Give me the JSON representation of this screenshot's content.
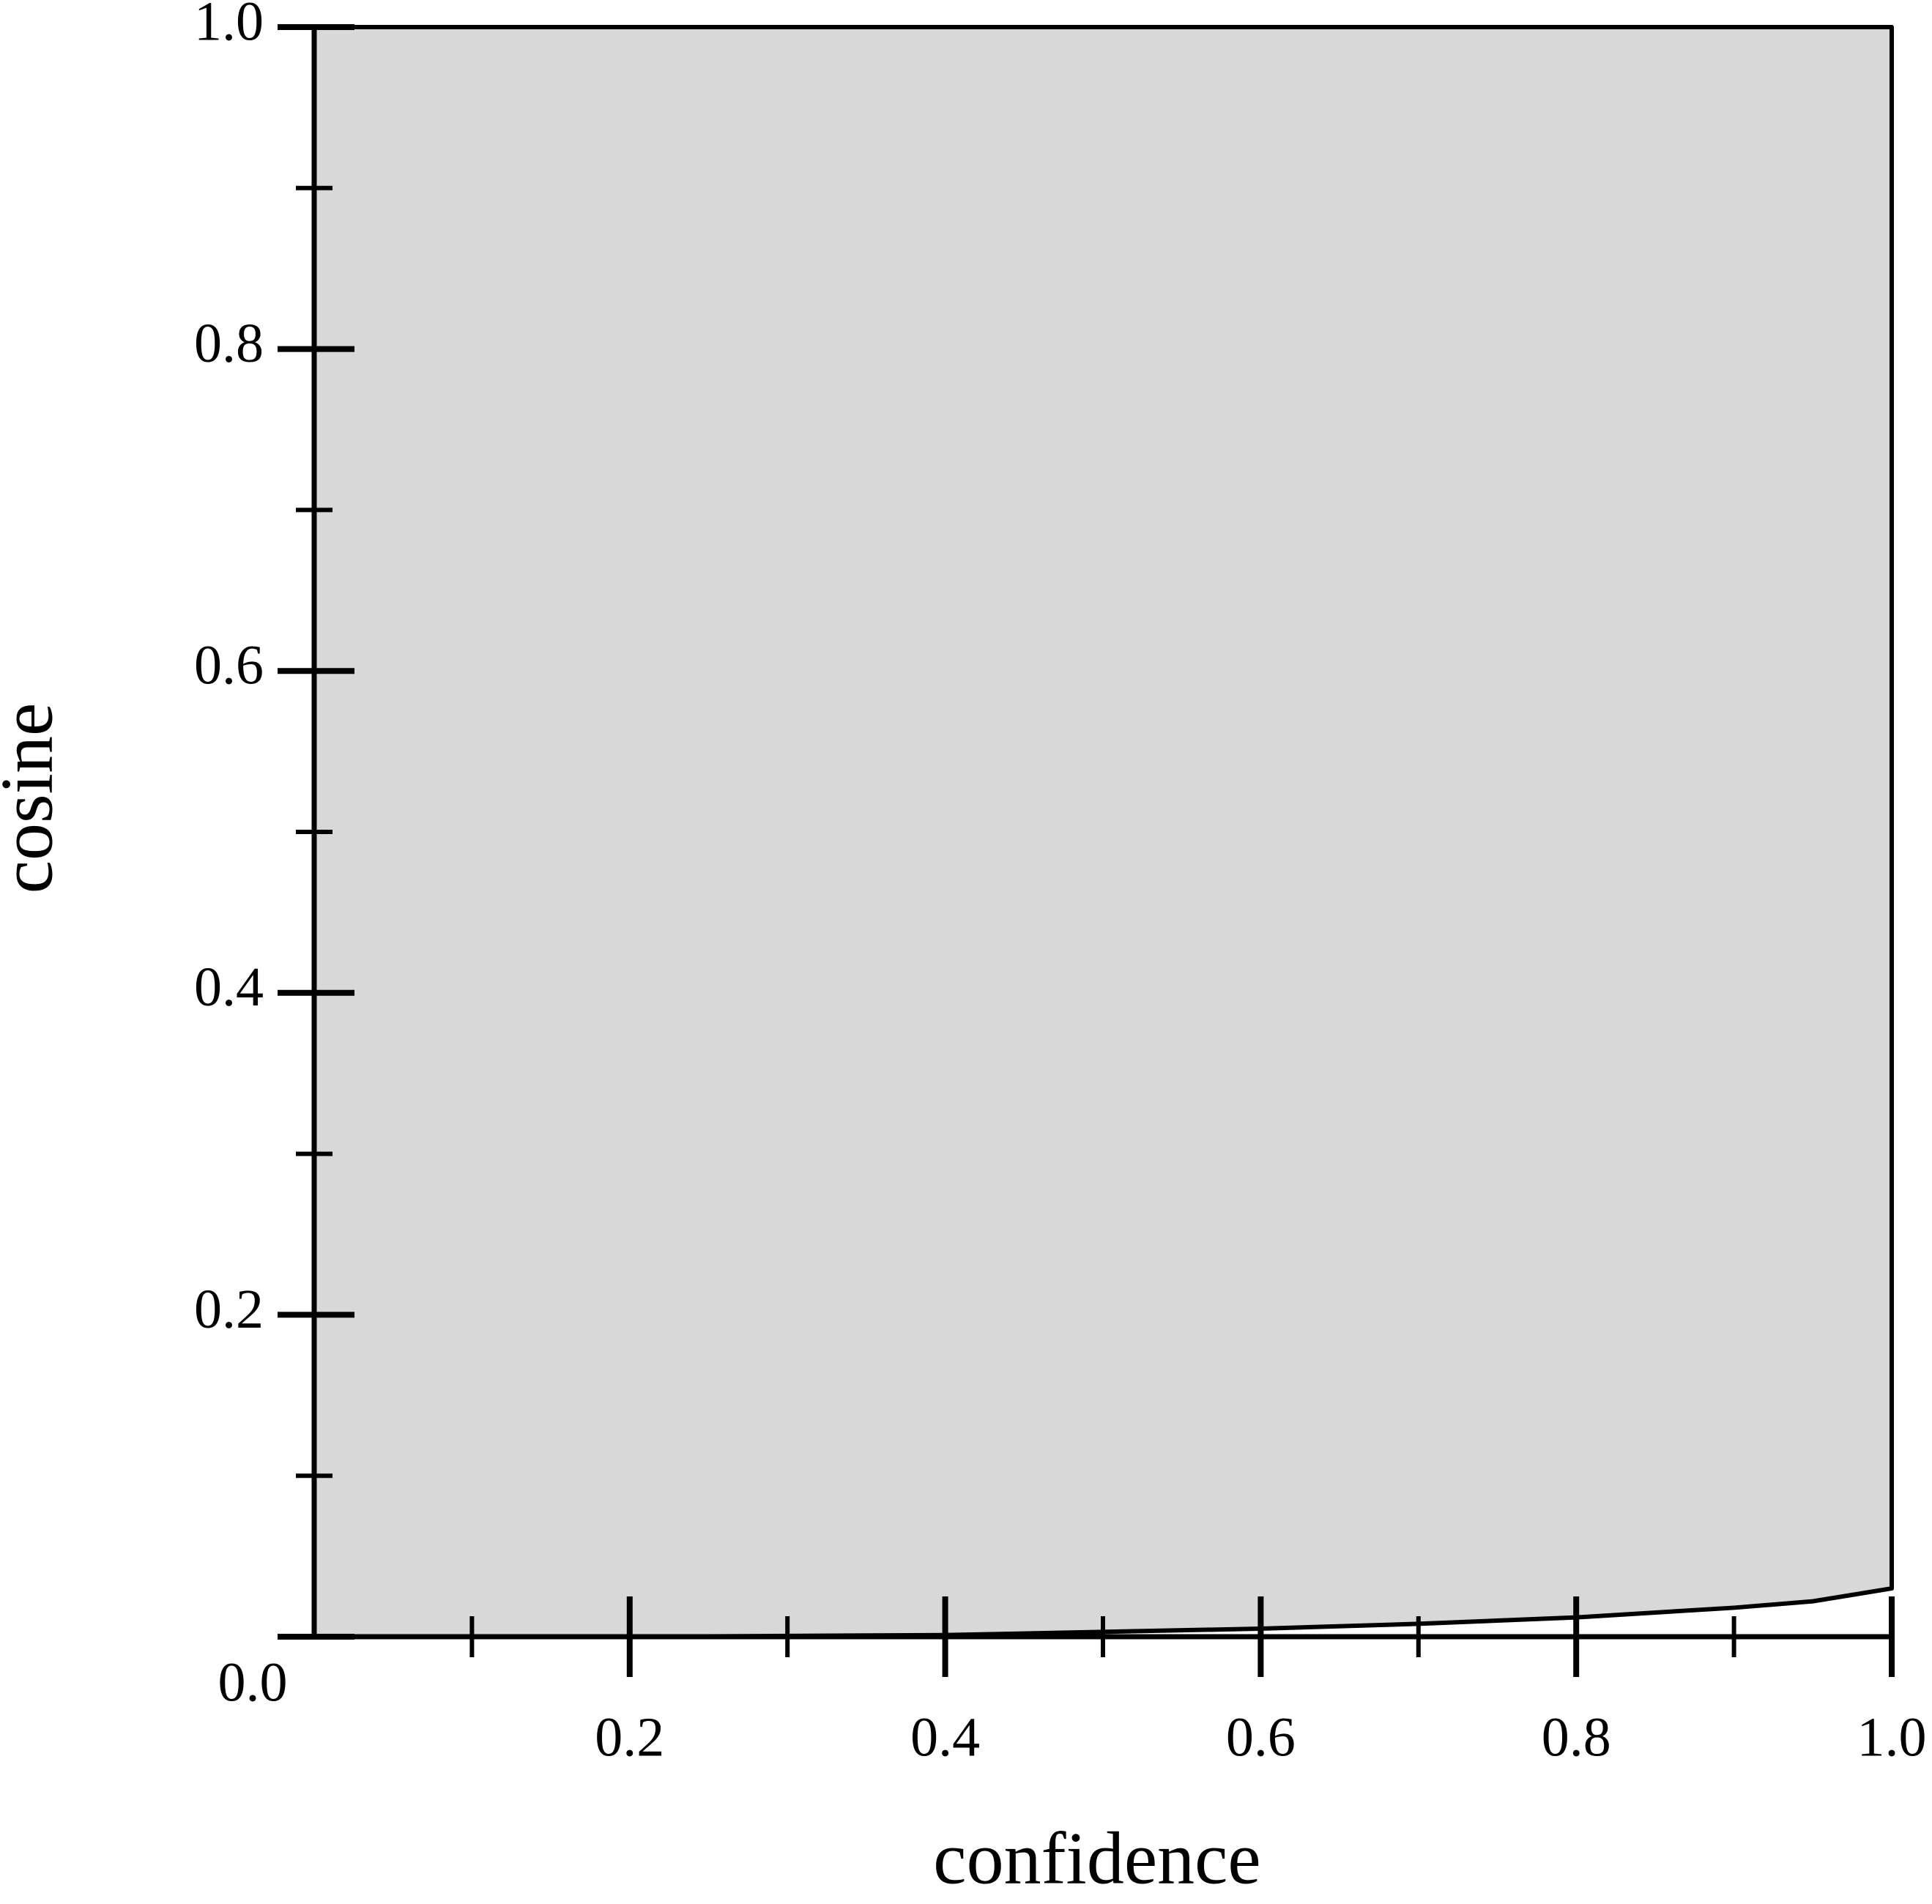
{
  "chart_data": {
    "type": "band",
    "x_label": "confidence",
    "y_label": "cosine",
    "series": [
      {
        "color": "#d8d8d8",
        "x": [
          0,
          0.2,
          0.4,
          0.5,
          0.6,
          0.7,
          0.8,
          0.9,
          0.95,
          1.0
        ],
        "lower": [
          0,
          0,
          0.001,
          0.003,
          0.005,
          0.008,
          0.012,
          0.018,
          0.022,
          0.03
        ],
        "upper": [
          1,
          1,
          1,
          1,
          1,
          1,
          1,
          1,
          1,
          1
        ]
      }
    ],
    "xlim": [
      0,
      1
    ],
    "ylim": [
      0,
      1
    ],
    "xticks": [
      0.2,
      0.4,
      0.6,
      0.8,
      {
        "value": 1,
        "label": "1.0"
      }
    ],
    "yticks": [
      {
        "value": 0,
        "label": "0.0"
      },
      0.2,
      0.4,
      0.6,
      0.8,
      {
        "value": 1,
        "label": "1.0"
      }
    ],
    "xminor_ticks": [
      0.1,
      0.3,
      0.5,
      0.7,
      0.9
    ],
    "yminor_ticks": [
      0.1,
      0.3,
      0.5,
      0.7,
      0.9
    ]
  }
}
